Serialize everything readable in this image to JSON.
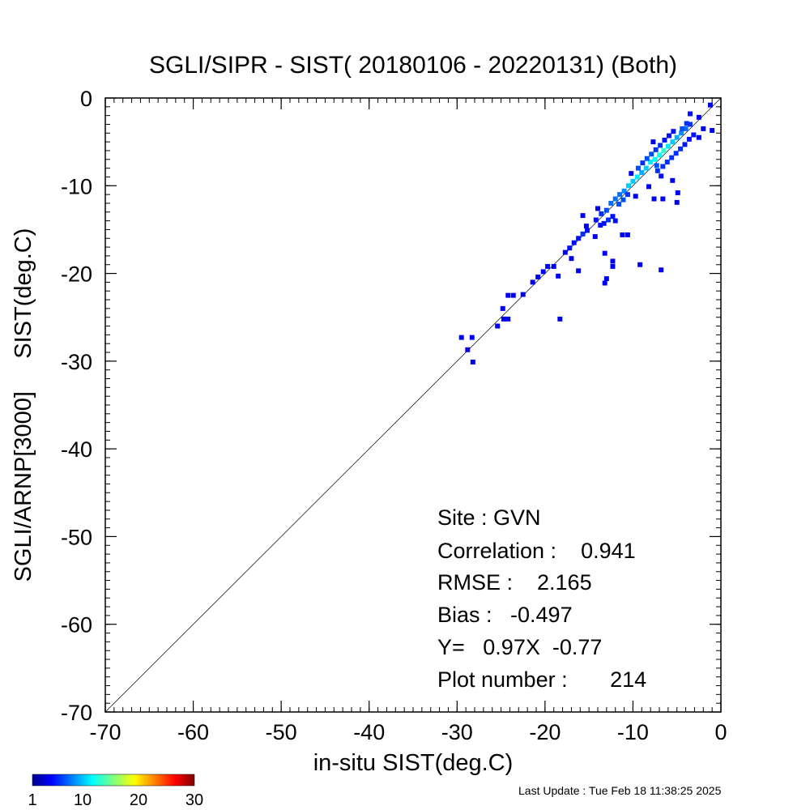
{
  "chart_data": {
    "type": "heatmap",
    "title": "SGLI/SIPR - SIST( 20180106 - 20220131) (Both)",
    "xlabel": "in-situ SIST(deg.C)",
    "ylabel": "SGLI/ARNP[3000]     SIST(deg.C)",
    "xlim": [
      -70,
      0
    ],
    "ylim": [
      -70,
      0
    ],
    "xticks": [
      "-70",
      "-60",
      "-50",
      "-40",
      "-30",
      "-20",
      "-10",
      "0"
    ],
    "yticks": [
      "0",
      "-10",
      "-20",
      "-30",
      "-40",
      "-50",
      "-60",
      "-70"
    ],
    "grid": false,
    "one_to_one_line": true,
    "bin_size": 0.55,
    "colorbar": {
      "min": 1,
      "max": 30,
      "tick_labels": [
        "1",
        "10",
        "20",
        "30"
      ],
      "colormap": "jet"
    },
    "stats": {
      "site": "Site : GVN",
      "correlation": "Correlation :    0.941",
      "rmse": "RMSE :    2.165",
      "bias": "Bias :   -0.497",
      "regression": "Y=   0.97X  -0.77",
      "plot_number": "Plot number :       214"
    },
    "points": [
      [
        -29.5,
        -27.3,
        1
      ],
      [
        -28.3,
        -27.3,
        1
      ],
      [
        -28.8,
        -28.7,
        1
      ],
      [
        -28.2,
        -30.1,
        1
      ],
      [
        -25.4,
        -26.0,
        1
      ],
      [
        -24.7,
        -25.2,
        1
      ],
      [
        -24.2,
        -25.2,
        1
      ],
      [
        -24.8,
        -24.0,
        1
      ],
      [
        -24.2,
        -22.5,
        1
      ],
      [
        -23.6,
        -22.5,
        1
      ],
      [
        -22.5,
        -22.4,
        1
      ],
      [
        -21.4,
        -21.0,
        1
      ],
      [
        -20.8,
        -20.4,
        1
      ],
      [
        -20.2,
        -19.8,
        1
      ],
      [
        -19.7,
        -19.2,
        1
      ],
      [
        -19.0,
        -19.2,
        1
      ],
      [
        -18.5,
        -20.3,
        1
      ],
      [
        -18.3,
        -25.2,
        1
      ],
      [
        -17.7,
        -17.6,
        1
      ],
      [
        -17.2,
        -17.1,
        2
      ],
      [
        -16.7,
        -16.5,
        2
      ],
      [
        -16.2,
        -16.0,
        2
      ],
      [
        -15.7,
        -15.5,
        3
      ],
      [
        -15.2,
        -15.1,
        2
      ],
      [
        -17.0,
        -18.3,
        1
      ],
      [
        -16.2,
        -19.7,
        1
      ],
      [
        -15.7,
        -13.4,
        1
      ],
      [
        -15.3,
        -14.6,
        1
      ],
      [
        -14.3,
        -15.8,
        1
      ],
      [
        -13.6,
        -13.2,
        3
      ],
      [
        -13.0,
        -12.8,
        4
      ],
      [
        -12.5,
        -12.0,
        5
      ],
      [
        -12.0,
        -11.5,
        5
      ],
      [
        -11.5,
        -11.0,
        5
      ],
      [
        -13.3,
        -14.3,
        2
      ],
      [
        -12.8,
        -13.9,
        3
      ],
      [
        -12.3,
        -13.5,
        2
      ],
      [
        -13.2,
        -17.7,
        1
      ],
      [
        -12.3,
        -18.6,
        1
      ],
      [
        -12.3,
        -19.2,
        1
      ],
      [
        -13.0,
        -20.6,
        1
      ],
      [
        -13.2,
        -21.1,
        1
      ],
      [
        -11.2,
        -15.6,
        1
      ],
      [
        -10.6,
        -15.6,
        1
      ],
      [
        -9.2,
        -19.0,
        1
      ],
      [
        -6.8,
        -19.6,
        1
      ],
      [
        -11.0,
        -10.6,
        6
      ],
      [
        -10.5,
        -10.0,
        8
      ],
      [
        -10.0,
        -9.5,
        8
      ],
      [
        -9.5,
        -9.0,
        9
      ],
      [
        -9.0,
        -8.5,
        7
      ],
      [
        -8.5,
        -8.0,
        8
      ],
      [
        -10.2,
        -8.6,
        1
      ],
      [
        -9.7,
        -11.2,
        1
      ],
      [
        -8.2,
        -10.1,
        1
      ],
      [
        -7.6,
        -11.5,
        1
      ],
      [
        -6.6,
        -11.5,
        1
      ],
      [
        -5.0,
        -11.9,
        1
      ],
      [
        -4.9,
        -10.8,
        1
      ],
      [
        -5.5,
        -9.4,
        1
      ],
      [
        -6.8,
        -8.9,
        2
      ],
      [
        -7.3,
        -7.7,
        4
      ],
      [
        -8.0,
        -7.3,
        9
      ],
      [
        -7.5,
        -7.0,
        10
      ],
      [
        -7.0,
        -6.5,
        10
      ],
      [
        -6.5,
        -6.0,
        11
      ],
      [
        -6.0,
        -5.5,
        9
      ],
      [
        -5.5,
        -5.0,
        8
      ],
      [
        -5.0,
        -4.5,
        7
      ],
      [
        -4.5,
        -4.0,
        6
      ],
      [
        -4.0,
        -3.5,
        5
      ],
      [
        -3.5,
        -3.0,
        3
      ],
      [
        -7.9,
        -6.4,
        4
      ],
      [
        -7.4,
        -5.9,
        3
      ],
      [
        -6.9,
        -5.4,
        3
      ],
      [
        -6.4,
        -4.8,
        2
      ],
      [
        -5.9,
        -4.3,
        2
      ],
      [
        -5.4,
        -3.8,
        2
      ],
      [
        -7.7,
        -5.0,
        1
      ],
      [
        -4.4,
        -3.5,
        4
      ],
      [
        -3.9,
        -2.9,
        3
      ],
      [
        -3.5,
        -1.8,
        2
      ],
      [
        -2.5,
        -2.2,
        1
      ],
      [
        -1.2,
        -0.8,
        1
      ],
      [
        -1.0,
        -3.7,
        1
      ],
      [
        -2.5,
        -4.5,
        1
      ],
      [
        -2.0,
        -3.5,
        1
      ],
      [
        -7.2,
        -8.3,
        3
      ],
      [
        -6.6,
        -7.8,
        3
      ],
      [
        -6.1,
        -7.3,
        3
      ],
      [
        -5.6,
        -6.8,
        3
      ],
      [
        -5.1,
        -6.3,
        3
      ],
      [
        -4.6,
        -5.8,
        3
      ],
      [
        -4.1,
        -5.3,
        2
      ],
      [
        -3.6,
        -4.7,
        2
      ],
      [
        -3.1,
        -4.2,
        2
      ],
      [
        -8.9,
        -7.4,
        3
      ],
      [
        -8.4,
        -6.9,
        4
      ],
      [
        -9.4,
        -8.0,
        4
      ],
      [
        -11.6,
        -12.1,
        4
      ],
      [
        -11.1,
        -11.6,
        4
      ],
      [
        -10.6,
        -11.0,
        3
      ],
      [
        -14.2,
        -13.9,
        2
      ],
      [
        -13.7,
        -14.5,
        2
      ],
      [
        -14.0,
        -12.6,
        1
      ],
      [
        -12.0,
        -14.0,
        2
      ]
    ]
  }
}
